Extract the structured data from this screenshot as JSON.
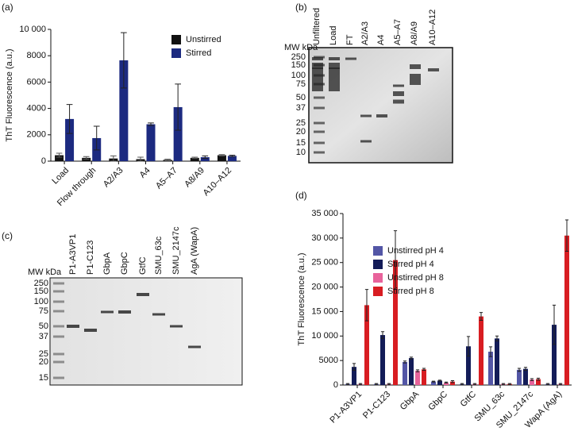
{
  "chart_data": [
    {
      "type": "bar",
      "panel_label": "(a)",
      "y_label": "ThT Fluorescence (a.u.)",
      "categories": [
        "Load",
        "Flow through",
        "A2/A3",
        "A4",
        "A5–A7",
        "A8/A9",
        "A10–A12"
      ],
      "series": [
        {
          "name": "Unstirred",
          "color": "#111111",
          "values": [
            450,
            250,
            200,
            150,
            100,
            250,
            450
          ],
          "errors": [
            150,
            100,
            200,
            150,
            50,
            50,
            50
          ]
        },
        {
          "name": "Stirred",
          "color": "#1c2a80",
          "values": [
            3200,
            1750,
            7650,
            2800,
            4100,
            300,
            400
          ],
          "errors": [
            1100,
            900,
            2100,
            100,
            1750,
            100,
            50
          ]
        }
      ],
      "ylim": [
        0,
        10000
      ],
      "yticks": [
        0,
        2000,
        4000,
        6000,
        8000,
        {
          "value": 10000,
          "label": "10 000"
        }
      ],
      "grid": false
    },
    {
      "type": "gel",
      "panel_label": "(b)",
      "axis_label": "MW kDa",
      "lanes": [
        "Unfiltered",
        "Load",
        "FT",
        "A2/A3",
        "A4",
        "A5–A7",
        "A8/A9",
        "A10–A12"
      ],
      "markers": [
        250,
        150,
        100,
        75,
        50,
        37,
        25,
        20,
        15,
        10
      ],
      "tone": "dark"
    },
    {
      "type": "gel",
      "panel_label": "(c)",
      "axis_label": "MW kDa",
      "lanes": [
        "P1-A3VP1",
        "P1-C123",
        "GbpA",
        "GbpC",
        "GtfC",
        "SMU_63c",
        "SMU_2147c",
        "AgA (WapA)"
      ],
      "markers": [
        250,
        150,
        100,
        75,
        50,
        37,
        25,
        20,
        15
      ],
      "tone": "light"
    },
    {
      "type": "bar",
      "panel_label": "(d)",
      "y_label": "ThT Fluorescence (a.u.)",
      "categories": [
        "P1-A3VP1",
        "P1-C123",
        "GbpA",
        "GbpC",
        "GtfC",
        "SMU_63c",
        "SMU_2147c",
        "WapA (AgA)"
      ],
      "series": [
        {
          "name": "Unstirred pH 4",
          "color": "#5356a6",
          "values": [
            200,
            200,
            4700,
            700,
            200,
            6800,
            3100,
            200
          ],
          "errors": [
            100,
            100,
            200,
            100,
            100,
            1000,
            300,
            100
          ]
        },
        {
          "name": "Stirred pH 4",
          "color": "#131c58",
          "values": [
            3700,
            10200,
            5500,
            900,
            7900,
            9500,
            3300,
            12300
          ],
          "errors": [
            700,
            700,
            200,
            100,
            2000,
            500,
            300,
            4000
          ]
        },
        {
          "name": "Unstirred pH 8",
          "color": "#e8639b",
          "values": [
            200,
            200,
            2900,
            500,
            200,
            200,
            1100,
            200
          ],
          "errors": [
            100,
            100,
            200,
            100,
            100,
            100,
            200,
            100
          ]
        },
        {
          "name": "Stirred pH 8",
          "color": "#d81d22",
          "values": [
            16300,
            25500,
            3200,
            700,
            14000,
            200,
            1200,
            30500
          ],
          "errors": [
            3200,
            6000,
            200,
            200,
            800,
            100,
            200,
            3200
          ]
        }
      ],
      "ylim": [
        0,
        35000
      ],
      "yticks": [
        0,
        5000,
        {
          "value": 10000,
          "label": "10 000"
        },
        {
          "value": 15000,
          "label": "15 000"
        },
        {
          "value": 20000,
          "label": "20 000"
        },
        {
          "value": 25000,
          "label": "25 000"
        },
        {
          "value": 30000,
          "label": "30 000"
        },
        {
          "value": 35000,
          "label": "35 000"
        }
      ],
      "grid": false
    }
  ]
}
